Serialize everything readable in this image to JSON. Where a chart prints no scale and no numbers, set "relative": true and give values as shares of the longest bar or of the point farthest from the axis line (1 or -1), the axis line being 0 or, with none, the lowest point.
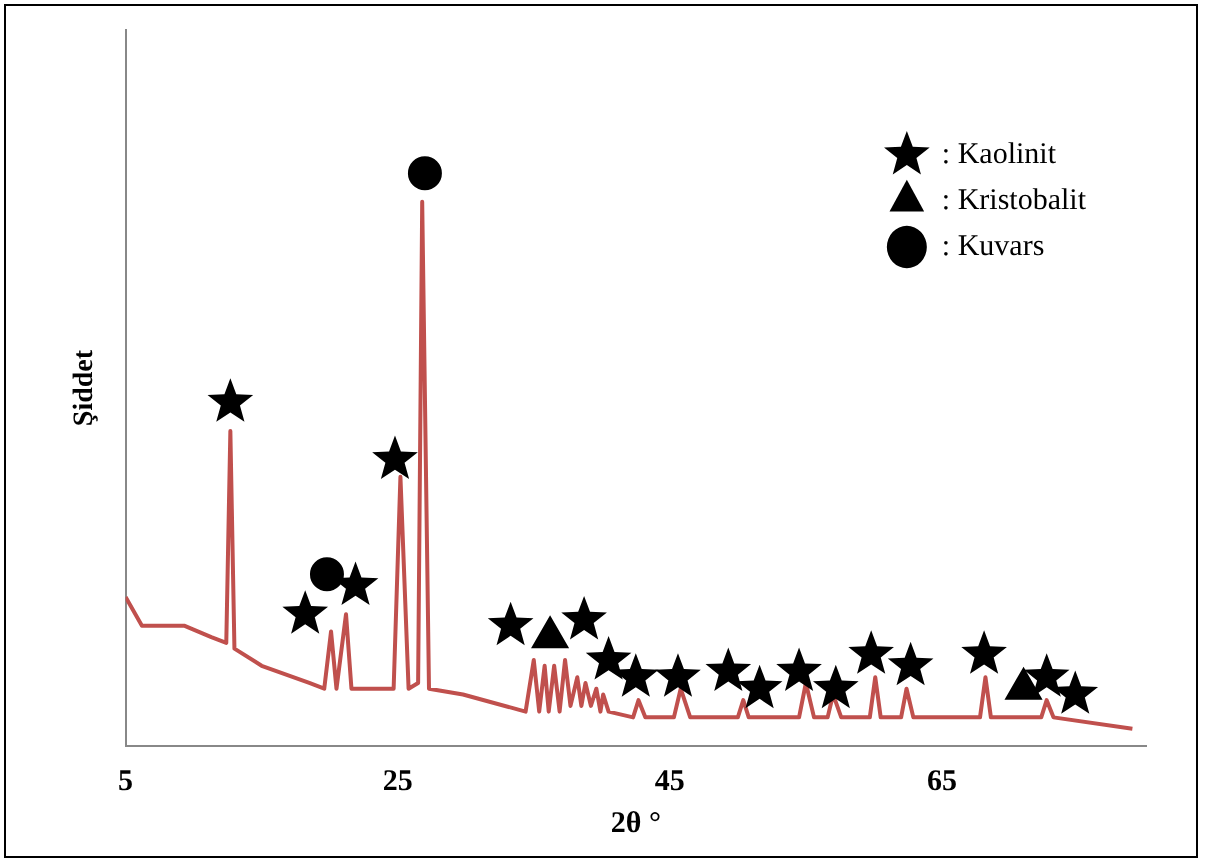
{
  "chart_data": {
    "type": "line",
    "relative": true,
    "xlabel": "2θ °",
    "ylabel": "Şiddet",
    "xlim": [
      5,
      80
    ],
    "xticks": [
      5,
      25,
      45,
      65
    ],
    "grid": false,
    "legend": "top right",
    "series": [
      {
        "type": "line",
        "color": "#c0504d",
        "marker": "none",
        "x": [
          5,
          6.2,
          9.3,
          11.3,
          12.4,
          12.7,
          13.0,
          15.0,
          18.5,
          19.6,
          20.1,
          20.5,
          21.2,
          21.6,
          24.7,
          25.2,
          25.8,
          26.5,
          26.8,
          27.3,
          29.8,
          34.4,
          35.0,
          35.4,
          35.8,
          36.1,
          36.5,
          36.9,
          37.3,
          37.7,
          38.2,
          38.5,
          38.8,
          39.2,
          39.6,
          39.9,
          40.1,
          40.5,
          42.3,
          42.7,
          43.2,
          45.3,
          45.8,
          46.5,
          50.0,
          50.4,
          50.8,
          54.5,
          55.0,
          55.6,
          56.6,
          57.0,
          57.6,
          59.7,
          60.1,
          60.5,
          62.0,
          62.4,
          62.9,
          67.8,
          68.2,
          68.6,
          70.4,
          72.3,
          72.7,
          73.2,
          79.0
        ],
        "values": [
          0.26,
          0.21,
          0.21,
          0.19,
          0.18,
          0.55,
          0.17,
          0.14,
          0.11,
          0.1,
          0.2,
          0.1,
          0.23,
          0.1,
          0.1,
          0.47,
          0.1,
          0.11,
          0.95,
          0.1,
          0.09,
          0.06,
          0.15,
          0.06,
          0.14,
          0.06,
          0.14,
          0.06,
          0.15,
          0.07,
          0.12,
          0.07,
          0.11,
          0.07,
          0.1,
          0.06,
          0.09,
          0.06,
          0.05,
          0.08,
          0.05,
          0.05,
          0.1,
          0.05,
          0.05,
          0.08,
          0.05,
          0.05,
          0.11,
          0.05,
          0.05,
          0.09,
          0.05,
          0.05,
          0.12,
          0.05,
          0.05,
          0.1,
          0.05,
          0.05,
          0.12,
          0.05,
          0.05,
          0.05,
          0.08,
          0.05,
          0.03
        ]
      },
      {
        "type": "scatter",
        "name": ": Kaolinit",
        "color": "#000000",
        "marker": "star",
        "x": [
          12.7,
          18.2,
          21.9,
          24.8,
          33.3,
          38.7,
          40.5,
          42.5,
          45.6,
          49.3,
          51.6,
          54.5,
          57.2,
          59.8,
          62.7,
          68.1,
          72.7,
          74.8
        ],
        "values": [
          0.6,
          0.23,
          0.28,
          0.5,
          0.21,
          0.22,
          0.15,
          0.12,
          0.12,
          0.13,
          0.1,
          0.13,
          0.1,
          0.16,
          0.14,
          0.16,
          0.12,
          0.09
        ]
      },
      {
        "type": "scatter",
        "name": ": Kristobalit",
        "color": "#000000",
        "marker": "triangle",
        "x": [
          36.2,
          71.0
        ],
        "values": [
          0.19,
          0.1
        ]
      },
      {
        "type": "scatter",
        "name": ": Kuvars",
        "color": "#000000",
        "marker": "circle",
        "x": [
          19.8,
          27.0
        ],
        "values": [
          0.3,
          1.0
        ]
      }
    ]
  }
}
